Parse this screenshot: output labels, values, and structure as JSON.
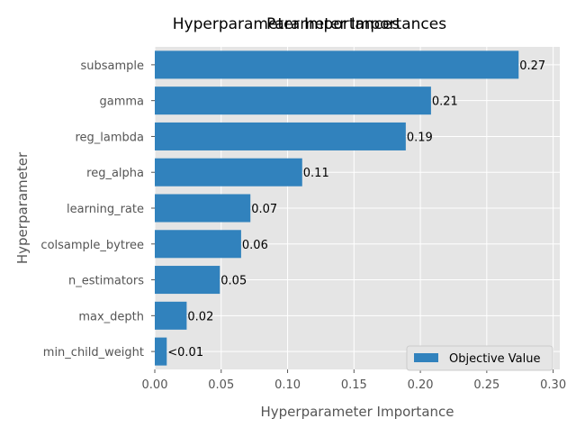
{
  "chart_data": {
    "type": "bar",
    "orientation": "horizontal",
    "title_main": "Hyperparameter Importances",
    "title_overlay": "Parameter Importances",
    "xlabel": "Hyperparameter Importance",
    "ylabel": "Hyperparameter",
    "xlim": [
      0,
      0.305
    ],
    "xticks": [
      0.0,
      0.05,
      0.1,
      0.15,
      0.2,
      0.25,
      0.3
    ],
    "xtick_labels": [
      "0.00",
      "0.05",
      "0.10",
      "0.15",
      "0.20",
      "0.25",
      "0.30"
    ],
    "grid": true,
    "legend_position": "bottom-right",
    "series": [
      {
        "name": "Objective Value",
        "color": "#3182bd",
        "categories": [
          "min_child_weight",
          "max_depth",
          "n_estimators",
          "colsample_bytree",
          "learning_rate",
          "reg_alpha",
          "reg_lambda",
          "gamma",
          "subsample"
        ],
        "values": [
          0.009,
          0.024,
          0.049,
          0.065,
          0.072,
          0.111,
          0.189,
          0.208,
          0.274
        ],
        "value_labels": [
          "<0.01",
          "0.02",
          "0.05",
          "0.06",
          "0.07",
          "0.11",
          "0.19",
          "0.21",
          "0.27"
        ]
      }
    ]
  },
  "colors": {
    "plot_background": "#e5e5e5",
    "grid": "#ffffff",
    "bar": "#3182bd",
    "tick_label": "#555555",
    "axis_label": "#555555",
    "title": "#000000"
  }
}
